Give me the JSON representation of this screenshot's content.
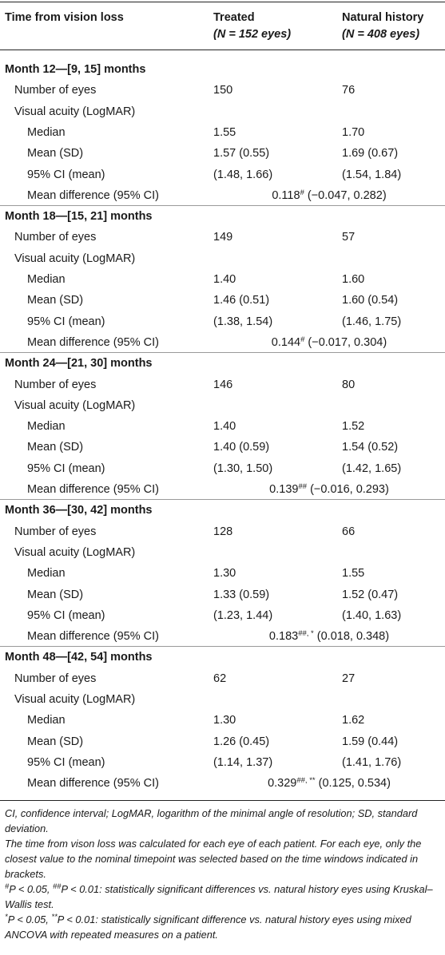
{
  "header": {
    "col0": "Time from vision loss",
    "col1_title": "Treated",
    "col1_n": "(N = 152 eyes)",
    "col2_title": "Natural history",
    "col2_n": "(N = 408 eyes)"
  },
  "sections": [
    {
      "title": "Month 12—[9, 15] months",
      "rows": [
        {
          "label": "Number of eyes",
          "level": 1,
          "treated": "150",
          "natural": "76"
        },
        {
          "label": "Visual acuity (LogMAR)",
          "level": 1,
          "treated": "",
          "natural": ""
        },
        {
          "label": "Median",
          "level": 2,
          "treated": "1.55",
          "natural": "1.70"
        },
        {
          "label": "Mean (SD)",
          "level": 2,
          "treated": "1.57 (0.55)",
          "natural": "1.69 (0.67)"
        },
        {
          "label": "95% CI (mean)",
          "level": 2,
          "treated": "(1.48, 1.66)",
          "natural": "(1.54, 1.84)"
        }
      ],
      "diff": {
        "label": "Mean difference (95% CI)",
        "value": "0.118",
        "sup": "#",
        "ci": "(−0.047, 0.282)"
      }
    },
    {
      "title": "Month 18—[15, 21] months",
      "rows": [
        {
          "label": "Number of eyes",
          "level": 1,
          "treated": "149",
          "natural": "57"
        },
        {
          "label": "Visual acuity (LogMAR)",
          "level": 1,
          "treated": "",
          "natural": ""
        },
        {
          "label": "Median",
          "level": 2,
          "treated": "1.40",
          "natural": "1.60"
        },
        {
          "label": "Mean (SD)",
          "level": 2,
          "treated": "1.46 (0.51)",
          "natural": "1.60 (0.54)"
        },
        {
          "label": "95% CI (mean)",
          "level": 2,
          "treated": "(1.38, 1.54)",
          "natural": "(1.46, 1.75)"
        }
      ],
      "diff": {
        "label": "Mean difference (95% CI)",
        "value": "0.144",
        "sup": "#",
        "ci": "(−0.017, 0.304)"
      }
    },
    {
      "title": "Month 24—[21, 30] months",
      "rows": [
        {
          "label": "Number of eyes",
          "level": 1,
          "treated": "146",
          "natural": "80"
        },
        {
          "label": "Visual acuity (LogMAR)",
          "level": 1,
          "treated": "",
          "natural": ""
        },
        {
          "label": "Median",
          "level": 2,
          "treated": "1.40",
          "natural": "1.52"
        },
        {
          "label": "Mean (SD)",
          "level": 2,
          "treated": "1.40 (0.59)",
          "natural": "1.54 (0.52)"
        },
        {
          "label": "95% CI (mean)",
          "level": 2,
          "treated": "(1.30, 1.50)",
          "natural": "(1.42, 1.65)"
        }
      ],
      "diff": {
        "label": "Mean difference (95% CI)",
        "value": "0.139",
        "sup": "##",
        "ci": "(−0.016, 0.293)"
      }
    },
    {
      "title": "Month 36—[30, 42] months",
      "rows": [
        {
          "label": "Number of eyes",
          "level": 1,
          "treated": "128",
          "natural": "66"
        },
        {
          "label": "Visual acuity (LogMAR)",
          "level": 1,
          "treated": "",
          "natural": ""
        },
        {
          "label": "Median",
          "level": 2,
          "treated": "1.30",
          "natural": "1.55"
        },
        {
          "label": "Mean (SD)",
          "level": 2,
          "treated": "1.33 (0.59)",
          "natural": "1.52 (0.47)"
        },
        {
          "label": "95% CI (mean)",
          "level": 2,
          "treated": "(1.23, 1.44)",
          "natural": "(1.40, 1.63)"
        }
      ],
      "diff": {
        "label": "Mean difference (95% CI)",
        "value": "0.183",
        "sup": "##, *",
        "ci": "(0.018, 0.348)"
      }
    },
    {
      "title": "Month 48—[42, 54] months",
      "rows": [
        {
          "label": "Number of eyes",
          "level": 1,
          "treated": "62",
          "natural": "27"
        },
        {
          "label": "Visual acuity (LogMAR)",
          "level": 1,
          "treated": "",
          "natural": ""
        },
        {
          "label": "Median",
          "level": 2,
          "treated": "1.30",
          "natural": "1.62"
        },
        {
          "label": "Mean (SD)",
          "level": 2,
          "treated": "1.26 (0.45)",
          "natural": "1.59 (0.44)"
        },
        {
          "label": "95% CI (mean)",
          "level": 2,
          "treated": "(1.14, 1.37)",
          "natural": "(1.41, 1.76)"
        }
      ],
      "diff": {
        "label": "Mean difference (95% CI)",
        "value": "0.329",
        "sup": "##, **",
        "ci": "(0.125, 0.534)"
      }
    }
  ],
  "footnotes": {
    "abbrev": "CI, confidence interval; LogMAR, logarithm of the minimal angle of resolution; SD, standard deviation.",
    "method": "The time from vison loss was calculated for each eye of each patient. For each eye, only the closest value to the nominal timepoint was selected based on the time windows indicated in brackets.",
    "kw_sym1": "#",
    "kw_text1": "P < 0.05, ",
    "kw_sym2": "##",
    "kw_text2": "P < 0.01: statistically significant differences vs. natural history eyes using Kruskal–Wallis test.",
    "anc_sym1": "*",
    "anc_text1": "P < 0.05, ",
    "anc_sym2": "**",
    "anc_text2": "P < 0.01: statistically significant difference vs. natural history eyes using mixed ANCOVA with repeated measures on a patient."
  }
}
